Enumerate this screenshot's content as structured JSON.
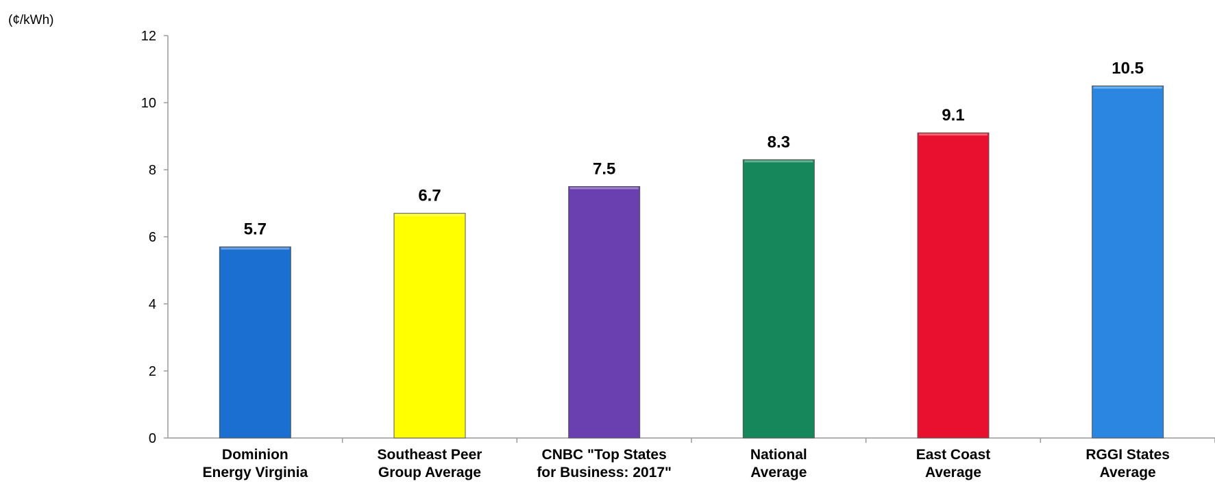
{
  "chart_data": {
    "type": "bar",
    "unit_label": "(¢/kWh)",
    "categories": [
      [
        "Dominion",
        "Energy Virginia"
      ],
      [
        "Southeast Peer",
        "Group Average"
      ],
      [
        "CNBC \"Top States",
        "for Business: 2017\""
      ],
      [
        "National",
        "Average"
      ],
      [
        "East Coast",
        "Average"
      ],
      [
        "RGGI States",
        "Average"
      ]
    ],
    "values": [
      5.7,
      6.7,
      7.5,
      8.3,
      9.1,
      10.5
    ],
    "data_labels": [
      "5.7",
      "6.7",
      "7.5",
      "8.3",
      "9.1",
      "10.5"
    ],
    "colors": [
      "#1a6fd0",
      "#ffff00",
      "#6a3fb0",
      "#15875a",
      "#e8102e",
      "#2a86e0"
    ],
    "ylim": [
      0,
      12
    ],
    "yticks": [
      0,
      2,
      4,
      6,
      8,
      10,
      12
    ],
    "grid": false,
    "legend": "none"
  }
}
